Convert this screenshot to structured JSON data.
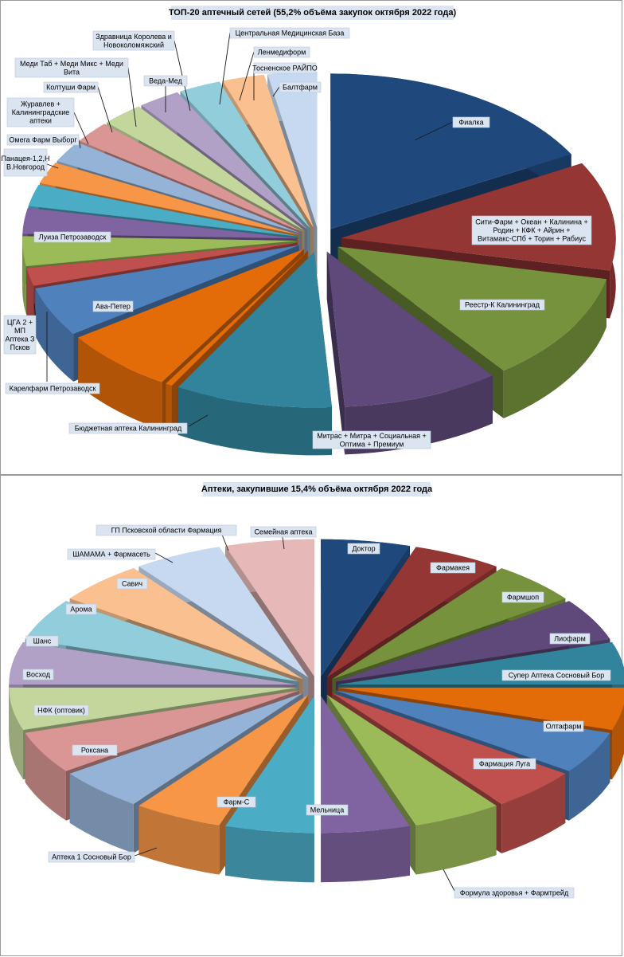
{
  "charts": [
    {
      "title": "ТОП-20 аптечный сетей (55,2% объёма закупок октября  2022 года)",
      "type": "pie",
      "labels": [
        "Фиалка",
        "Сити-Фарм + Океан + Калинина + Родин + КФК + Айрин + Витамакс-СПб + Торин + Рабиус",
        "Реестр-К Калининград",
        "Митрас + Митра + Социальная + Оптима + Премиум",
        "Бюджетная аптека Калининград",
        "Карелфарм Петрозаводск",
        "Ава-Петер",
        "ЦГА 2 + МП Аптека З Псков",
        "Луиза Петрозаводск",
        "Панацея-1,2,Н В.Новгород",
        "Омега Фарм Выборг",
        "Журавлев + Калининградские аптеки",
        "Колтуши Фарм",
        "Меди Таб + Меди Микс + Меди Вита",
        "Здравница Королева и Новоколомяжский",
        "Веда-Мед",
        "Центральная Медицинская База",
        "Ленмедиформ",
        "Тосненское РАЙПО",
        "Балтфарм"
      ]
    },
    {
      "title": "Аптеки, закупившие 15,4% объёма октября 2022 года",
      "type": "pie",
      "labels": [
        "Доктор",
        "Фармакея",
        "Фармшоп",
        "Лиофарм",
        "Супер Аптека Сосновый Бор",
        "Олтафарм",
        "Фармация Луга",
        "Формула здоровья + Фармтрейд",
        "Мельница",
        "Фарм-С",
        "Аптека 1 Сосновый Бор",
        "Роксана",
        "НФК (оптовик)",
        "Восход",
        "Шанс",
        "Арома",
        "Савич",
        "ШАМАМА  + Фармасеть",
        "ГП Псковской области Фармация",
        "Семейная аптека"
      ]
    }
  ],
  "chart_data": [
    {
      "type": "pie",
      "title": "ТОП-20 аптечный сетей (55,2% объёма закупок октября  2022 года)",
      "series": [
        {
          "labels": [
            "Фиалка",
            "Сити-Фарм + Океан + Калинина + Родин + КФК + Айрин + Витамакс-СПб + Торин + Рабиус",
            "Реестр-К Калининград",
            "Митрас + Митра + Социальная + Оптима + Премиум",
            "Бюджетная аптека Калининград",
            "Карелфарм Петрозаводск",
            "Ава-Петер",
            "ЦГА 2 + МП Аптека З Псков",
            "Луиза Петрозаводск",
            "Панацея-1,2,Н В.Новгород",
            "Омега Фарм Выборг",
            "Журавлев + Калининградские аптеки",
            "Колтуши Фарм",
            "Меди Таб + Меди Микс + Меди Вита",
            "Здравница Королева и Новоколомяжский",
            "Веда-Мед",
            "Центральная Медицинская База",
            "Ленмедиформ",
            "Тосненское РАЙПО",
            "Балтфарм"
          ],
          "values": [
            16.5,
            11.0,
            11.0,
            9.0,
            9.0,
            0.4,
            6.5,
            5.0,
            1.8,
            3.0,
            2.6,
            2.2,
            2.2,
            2.2,
            2.2,
            2.4,
            2.4,
            2.4,
            2.4,
            2.8
          ],
          "colors": [
            "#1F497D",
            "#943634",
            "#76923C",
            "#5F497A",
            "#31849B",
            "#E36C09",
            "#E36C09",
            "#4F81BD",
            "#C0504D",
            "#9BBB59",
            "#8064A2",
            "#4BACC6",
            "#F79646",
            "#95B3D7",
            "#D99694",
            "#C3D69B",
            "#B2A1C7",
            "#92CDDC",
            "#FAC090",
            "#C6D9F0"
          ]
        }
      ]
    },
    {
      "type": "pie",
      "title": "Аптеки, закупившие 15,4% объёма октября 2022 года",
      "series": [
        {
          "labels": [
            "Доктор",
            "Фармакея",
            "Фармшоп",
            "Лиофарм",
            "Супер Аптека Сосновый Бор",
            "Олтафарм",
            "Фармация Луга",
            "Формула здоровья + Фармтрейд",
            "Мельница",
            "Фарм-С",
            "Аптека 1 Сосновый Бор",
            "Роксана",
            "НФК (оптовик)",
            "Восход",
            "Шанс",
            "Арома",
            "Савич",
            "ШАМАМА  + Фармасеть",
            "ГП Псковской области Фармация",
            "Семейная аптека"
          ],
          "values": [
            5,
            5,
            5,
            5,
            5,
            5,
            5,
            5,
            5,
            5,
            5,
            5,
            5,
            5,
            5,
            5,
            5,
            5,
            5,
            5
          ],
          "colors": [
            "#1F497D",
            "#943634",
            "#76923C",
            "#5F497A",
            "#31849B",
            "#E36C09",
            "#4F81BD",
            "#C0504D",
            "#9BBB59",
            "#8064A2",
            "#4BACC6",
            "#F79646",
            "#95B3D7",
            "#D99694",
            "#C3D69B",
            "#B2A1C7",
            "#92CDDC",
            "#FAC090",
            "#C6D9F0",
            "#E6B9B8"
          ]
        }
      ]
    }
  ]
}
